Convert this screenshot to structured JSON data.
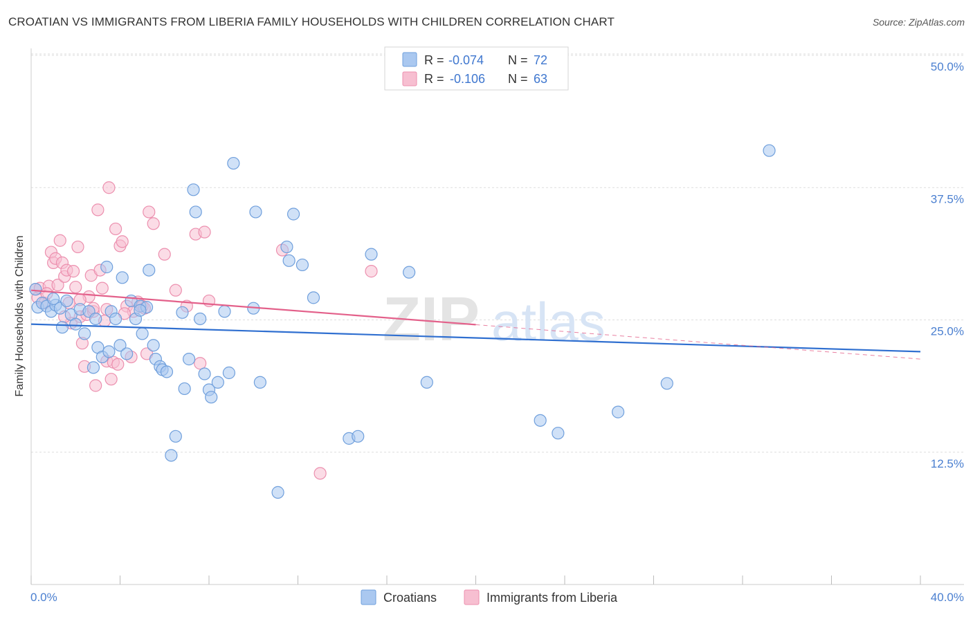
{
  "header": {
    "title": "CROATIAN VS IMMIGRANTS FROM LIBERIA FAMILY HOUSEHOLDS WITH CHILDREN CORRELATION CHART",
    "source": "Source: ZipAtlas.com"
  },
  "legend": {
    "rows": [
      {
        "r_label": "R =",
        "r_value": "-0.074",
        "n_label": "N =",
        "n_value": "72"
      },
      {
        "r_label": "R =",
        "r_value": "-0.106",
        "n_label": "N =",
        "n_value": "63"
      }
    ]
  },
  "bottom_legend": [
    "Croatians",
    "Immigrants from Liberia"
  ],
  "watermark": {
    "part1": "ZIP",
    "part2": "atlas"
  },
  "colors": {
    "croatians_fill": "#aac8f0",
    "croatians_stroke": "#6f9fdc",
    "croatians_line": "#2f6fd0",
    "liberia_fill": "#f7bfd1",
    "liberia_stroke": "#ec8fae",
    "liberia_line": "#e3608a",
    "grid": "#dddddd",
    "axis_label": "#4a7fd0"
  },
  "chart_data": {
    "type": "scatter",
    "title": "CROATIAN VS IMMIGRANTS FROM LIBERIA FAMILY HOUSEHOLDS WITH CHILDREN CORRELATION CHART",
    "xlabel": "",
    "ylabel": "Family Households with Children",
    "xlim": [
      0,
      40
    ],
    "ylim": [
      0,
      50
    ],
    "x_tick_labels": [
      "0.0%",
      "40.0%"
    ],
    "y_ticks": [
      12.5,
      25.0,
      37.5,
      50.0
    ],
    "y_tick_labels": [
      "12.5%",
      "25.0%",
      "37.5%",
      "50.0%"
    ],
    "series": [
      {
        "name": "Croatians",
        "R": -0.074,
        "N": 72,
        "trend": {
          "x": [
            0,
            40
          ],
          "y": [
            24.6,
            22.0
          ],
          "dashed_from": null
        },
        "points": [
          [
            0.3,
            26.2
          ],
          [
            0.5,
            26.6
          ],
          [
            0.7,
            26.3
          ],
          [
            0.9,
            25.8
          ],
          [
            1.1,
            26.4
          ],
          [
            1.3,
            26.1
          ],
          [
            1.4,
            24.3
          ],
          [
            1.6,
            26.8
          ],
          [
            1.8,
            25.5
          ],
          [
            2.0,
            24.6
          ],
          [
            2.2,
            26.0
          ],
          [
            2.4,
            23.7
          ],
          [
            2.6,
            25.8
          ],
          [
            2.8,
            20.5
          ],
          [
            3.0,
            22.4
          ],
          [
            3.2,
            21.5
          ],
          [
            3.4,
            30.0
          ],
          [
            3.5,
            22.0
          ],
          [
            3.6,
            25.8
          ],
          [
            3.8,
            25.1
          ],
          [
            4.0,
            22.6
          ],
          [
            4.1,
            29.0
          ],
          [
            4.3,
            21.8
          ],
          [
            4.5,
            26.8
          ],
          [
            4.7,
            25.1
          ],
          [
            4.9,
            26.3
          ],
          [
            5.0,
            23.7
          ],
          [
            5.2,
            26.2
          ],
          [
            5.3,
            29.7
          ],
          [
            5.5,
            22.6
          ],
          [
            5.6,
            21.3
          ],
          [
            5.8,
            20.6
          ],
          [
            5.9,
            20.3
          ],
          [
            6.1,
            20.1
          ],
          [
            6.3,
            12.2
          ],
          [
            6.5,
            14.0
          ],
          [
            6.8,
            25.7
          ],
          [
            6.9,
            18.5
          ],
          [
            7.1,
            21.3
          ],
          [
            7.3,
            37.3
          ],
          [
            7.4,
            35.2
          ],
          [
            7.6,
            25.1
          ],
          [
            7.8,
            19.9
          ],
          [
            8.0,
            18.4
          ],
          [
            8.1,
            17.7
          ],
          [
            8.4,
            19.1
          ],
          [
            8.7,
            25.8
          ],
          [
            8.9,
            20.0
          ],
          [
            9.1,
            39.8
          ],
          [
            10.0,
            26.1
          ],
          [
            10.1,
            35.2
          ],
          [
            10.3,
            19.1
          ],
          [
            11.1,
            8.7
          ],
          [
            11.5,
            31.9
          ],
          [
            11.6,
            30.6
          ],
          [
            11.8,
            35.0
          ],
          [
            12.2,
            30.2
          ],
          [
            12.7,
            27.1
          ],
          [
            14.3,
            13.8
          ],
          [
            14.7,
            14.0
          ],
          [
            15.3,
            31.2
          ],
          [
            17.0,
            29.5
          ],
          [
            17.8,
            19.1
          ],
          [
            22.9,
            15.5
          ],
          [
            23.7,
            14.3
          ],
          [
            26.4,
            16.3
          ],
          [
            28.6,
            19.0
          ],
          [
            33.2,
            41.0
          ],
          [
            0.2,
            27.9
          ],
          [
            1.0,
            27.0
          ],
          [
            2.9,
            25.1
          ],
          [
            4.9,
            25.9
          ]
        ]
      },
      {
        "name": "Immigrants from Liberia",
        "R": -0.106,
        "N": 63,
        "trend": {
          "x": [
            0,
            40
          ],
          "y": [
            27.8,
            21.3
          ],
          "dashed_from": 20.0
        },
        "points": [
          [
            0.2,
            27.9
          ],
          [
            0.3,
            27.1
          ],
          [
            0.4,
            28.0
          ],
          [
            0.6,
            26.6
          ],
          [
            0.8,
            28.2
          ],
          [
            0.9,
            31.4
          ],
          [
            1.0,
            30.4
          ],
          [
            1.1,
            30.8
          ],
          [
            1.2,
            28.3
          ],
          [
            1.3,
            32.5
          ],
          [
            1.4,
            30.4
          ],
          [
            1.5,
            29.1
          ],
          [
            1.6,
            29.7
          ],
          [
            1.7,
            26.6
          ],
          [
            1.8,
            24.7
          ],
          [
            1.9,
            29.6
          ],
          [
            2.0,
            28.1
          ],
          [
            2.1,
            31.9
          ],
          [
            2.2,
            25.3
          ],
          [
            2.3,
            22.8
          ],
          [
            2.4,
            20.6
          ],
          [
            2.5,
            25.5
          ],
          [
            2.6,
            27.2
          ],
          [
            2.7,
            29.2
          ],
          [
            2.8,
            25.8
          ],
          [
            2.9,
            18.8
          ],
          [
            3.0,
            35.4
          ],
          [
            3.1,
            29.7
          ],
          [
            3.2,
            28.0
          ],
          [
            3.3,
            24.9
          ],
          [
            3.4,
            21.1
          ],
          [
            3.5,
            37.5
          ],
          [
            3.6,
            19.4
          ],
          [
            3.7,
            21.0
          ],
          [
            3.8,
            33.6
          ],
          [
            3.9,
            20.8
          ],
          [
            4.0,
            32.0
          ],
          [
            4.1,
            32.4
          ],
          [
            4.3,
            26.3
          ],
          [
            4.5,
            21.5
          ],
          [
            4.6,
            25.8
          ],
          [
            4.8,
            26.7
          ],
          [
            5.0,
            26.3
          ],
          [
            5.2,
            21.8
          ],
          [
            5.3,
            35.2
          ],
          [
            5.5,
            34.1
          ],
          [
            6.0,
            31.2
          ],
          [
            6.5,
            27.8
          ],
          [
            7.0,
            26.3
          ],
          [
            7.4,
            33.1
          ],
          [
            7.6,
            20.9
          ],
          [
            7.8,
            33.3
          ],
          [
            8.0,
            26.8
          ],
          [
            11.3,
            31.6
          ],
          [
            13.0,
            10.5
          ],
          [
            15.3,
            29.6
          ],
          [
            0.7,
            27.5
          ],
          [
            1.5,
            25.3
          ],
          [
            2.2,
            26.9
          ],
          [
            2.8,
            26.1
          ],
          [
            3.4,
            26.0
          ],
          [
            4.2,
            25.6
          ],
          [
            5.1,
            26.1
          ]
        ]
      }
    ]
  }
}
